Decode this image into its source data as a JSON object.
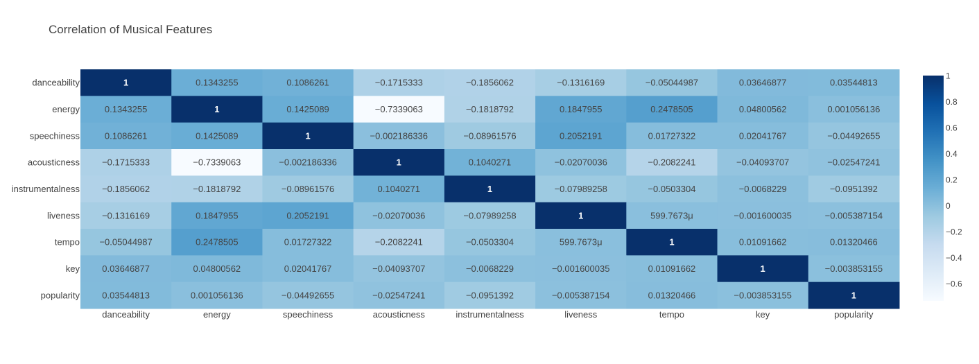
{
  "chart_data": {
    "type": "heatmap",
    "title": "Correlation of Musical Features",
    "x_categories": [
      "danceability",
      "energy",
      "speechiness",
      "acousticness",
      "instrumentalness",
      "liveness",
      "tempo",
      "key",
      "popularity"
    ],
    "y_categories": [
      "danceability",
      "energy",
      "speechiness",
      "acousticness",
      "instrumentalness",
      "liveness",
      "tempo",
      "key",
      "popularity"
    ],
    "z": [
      [
        1,
        0.1343255,
        0.1086261,
        -0.1715333,
        -0.1856062,
        -0.1316169,
        -0.05044987,
        0.03646877,
        0.03544813
      ],
      [
        0.1343255,
        1,
        0.1425089,
        -0.7339063,
        -0.1818792,
        0.1847955,
        0.2478505,
        0.04800562,
        0.001056136
      ],
      [
        0.1086261,
        0.1425089,
        1,
        -0.002186336,
        -0.08961576,
        0.2052191,
        0.01727322,
        0.02041767,
        -0.04492655
      ],
      [
        -0.1715333,
        -0.7339063,
        -0.002186336,
        1,
        0.1040271,
        -0.02070036,
        -0.2082241,
        -0.04093707,
        -0.02547241
      ],
      [
        -0.1856062,
        -0.1818792,
        -0.08961576,
        0.1040271,
        1,
        -0.07989258,
        -0.0503304,
        -0.0068229,
        -0.0951392
      ],
      [
        -0.1316169,
        0.1847955,
        0.2052191,
        -0.02070036,
        -0.07989258,
        1,
        0.0005997673,
        -0.001600035,
        -0.005387154
      ],
      [
        -0.05044987,
        0.2478505,
        0.01727322,
        -0.2082241,
        -0.0503304,
        0.0005997673,
        1,
        0.01091662,
        0.01320466
      ],
      [
        0.03646877,
        0.04800562,
        0.02041767,
        -0.04093707,
        -0.0068229,
        -0.001600035,
        0.01091662,
        1,
        -0.003853155
      ],
      [
        0.03544813,
        0.001056136,
        -0.04492655,
        -0.02547241,
        -0.0951392,
        -0.005387154,
        0.01320466,
        -0.003853155,
        1
      ]
    ],
    "text": [
      [
        "1",
        "0.1343255",
        "0.1086261",
        "−0.1715333",
        "−0.1856062",
        "−0.1316169",
        "−0.05044987",
        "0.03646877",
        "0.03544813"
      ],
      [
        "0.1343255",
        "1",
        "0.1425089",
        "−0.7339063",
        "−0.1818792",
        "0.1847955",
        "0.2478505",
        "0.04800562",
        "0.001056136"
      ],
      [
        "0.1086261",
        "0.1425089",
        "1",
        "−0.002186336",
        "−0.08961576",
        "0.2052191",
        "0.01727322",
        "0.02041767",
        "−0.04492655"
      ],
      [
        "−0.1715333",
        "−0.7339063",
        "−0.002186336",
        "1",
        "0.1040271",
        "−0.02070036",
        "−0.2082241",
        "−0.04093707",
        "−0.02547241"
      ],
      [
        "−0.1856062",
        "−0.1818792",
        "−0.08961576",
        "0.1040271",
        "1",
        "−0.07989258",
        "−0.0503304",
        "−0.0068229",
        "−0.0951392"
      ],
      [
        "−0.1316169",
        "0.1847955",
        "0.2052191",
        "−0.02070036",
        "−0.07989258",
        "1",
        "599.7673μ",
        "−0.001600035",
        "−0.005387154"
      ],
      [
        "−0.05044987",
        "0.2478505",
        "0.01727322",
        "−0.2082241",
        "−0.0503304",
        "599.7673μ",
        "1",
        "0.01091662",
        "0.01320466"
      ],
      [
        "0.03646877",
        "0.04800562",
        "0.02041767",
        "−0.04093707",
        "−0.0068229",
        "−0.001600035",
        "0.01091662",
        "1",
        "−0.003853155"
      ],
      [
        "0.03544813",
        "0.001056136",
        "−0.04492655",
        "−0.02547241",
        "−0.0951392",
        "−0.005387154",
        "0.01320466",
        "−0.003853155",
        "1"
      ]
    ],
    "zmin": -0.7339063,
    "zmax": 1,
    "colorscale": "Blues",
    "colorbar_ticks": [
      "1",
      "0.8",
      "0.6",
      "0.4",
      "0.2",
      "0",
      "−0.2",
      "−0.4",
      "−0.6"
    ],
    "colorbar_tick_values": [
      1,
      0.8,
      0.6,
      0.4,
      0.2,
      0,
      -0.2,
      -0.4,
      -0.6
    ]
  }
}
